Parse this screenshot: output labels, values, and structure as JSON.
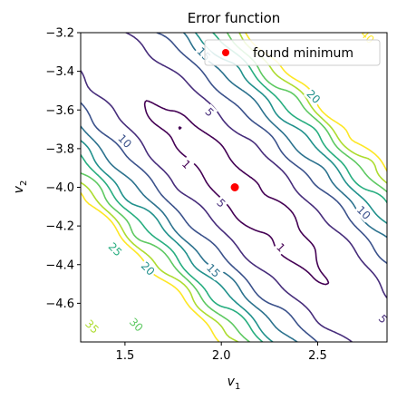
{
  "chart_data": {
    "type": "contour",
    "title": "Error function",
    "xlabel": "v",
    "xlabel_sub": "1",
    "ylabel": "v",
    "ylabel_sub": "2",
    "xlim": [
      1.27,
      2.86
    ],
    "ylim": [
      -4.8,
      -3.2
    ],
    "xticks": [
      1.5,
      2.0,
      2.5
    ],
    "xtick_labels": [
      "1.5",
      "2.0",
      "2.5"
    ],
    "yticks": [
      -3.2,
      -3.4,
      -3.6,
      -3.8,
      -4.0,
      -4.2,
      -4.4,
      -4.6
    ],
    "ytick_labels": [
      "−3.2",
      "−3.4",
      "−3.6",
      "−3.8",
      "−4.0",
      "−4.2",
      "−4.4",
      "−4.6"
    ],
    "levels": [
      1,
      5,
      10,
      15,
      20,
      25,
      30,
      35,
      40
    ],
    "level_colors": {
      "1": "#440154",
      "5": "#472d7b",
      "10": "#3b528b",
      "15": "#2c728e",
      "20": "#21918c",
      "25": "#28ae80",
      "30": "#5ec962",
      "35": "#addc30",
      "40": "#fde725"
    },
    "contour_labels": [
      {
        "text": "1",
        "level": 1,
        "x": 1.82,
        "y": -3.88
      },
      {
        "text": "1",
        "level": 1,
        "x": 2.31,
        "y": -4.31
      },
      {
        "text": "5",
        "level": 5,
        "x": 1.94,
        "y": -3.61
      },
      {
        "text": "5",
        "level": 5,
        "x": 2.0,
        "y": -4.08
      },
      {
        "text": "10",
        "level": 10,
        "x": 1.5,
        "y": -3.76
      },
      {
        "text": "10",
        "level": 10,
        "x": 2.74,
        "y": -4.13
      },
      {
        "text": "15",
        "level": 15,
        "x": 1.96,
        "y": -4.43
      },
      {
        "text": "15",
        "level": 15,
        "x": 1.91,
        "y": -3.31
      },
      {
        "text": "20",
        "level": 20,
        "x": 1.62,
        "y": -4.42
      },
      {
        "text": "20",
        "level": 20,
        "x": 2.48,
        "y": -3.53
      },
      {
        "text": "25",
        "level": 25,
        "x": 1.45,
        "y": -4.32
      },
      {
        "text": "30",
        "level": 30,
        "x": 1.56,
        "y": -4.71
      },
      {
        "text": "35",
        "level": 35,
        "x": 1.33,
        "y": -4.72
      },
      {
        "text": "40",
        "level": 40,
        "x": 2.76,
        "y": -3.22
      },
      {
        "text": "5",
        "level": 5,
        "x": 2.84,
        "y": -4.68
      }
    ],
    "series": [
      {
        "name": "found minimum",
        "type": "point",
        "x": 2.07,
        "y": -4.0,
        "color": "#ff0000"
      }
    ],
    "legend": {
      "placement": "top-right",
      "entries": [
        "found minimum"
      ]
    },
    "grid": false
  }
}
